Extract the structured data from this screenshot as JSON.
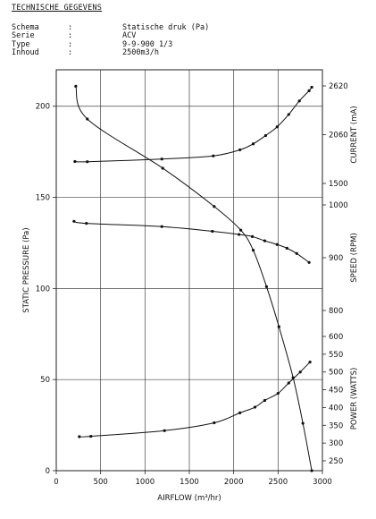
{
  "header": {
    "title": "TECHNISCHE GEGEVENS",
    "specs": [
      {
        "label": "Schema",
        "colon": ":",
        "value": "Statische druk (Pa)"
      },
      {
        "label": "Serie",
        "colon": ":",
        "value": "ACV"
      },
      {
        "label": "Type",
        "colon": ":",
        "value": "9-9-900 1/3"
      },
      {
        "label": "Inhoud",
        "colon": ":",
        "value": "2500m3/h"
      }
    ]
  },
  "chart_data": {
    "type": "line",
    "xlabel": "AIRFLOW (m³/hr)",
    "xlim": [
      0,
      3000
    ],
    "x_ticks": [
      "0",
      "500",
      "1000",
      "1500",
      "2000",
      "2500",
      "3000"
    ],
    "grid": true,
    "axes": {
      "pressure": {
        "label": "STATIC PRESSURE (Pa)",
        "side": "left",
        "ylim": [
          0,
          220
        ],
        "ticks": [
          0,
          50,
          100,
          150,
          200
        ]
      },
      "current": {
        "label": "CURRENT (mA)",
        "side": "right",
        "ylim": [
          1500,
          2620
        ],
        "ticks": [
          1500,
          2060,
          2620
        ]
      },
      "speed": {
        "label": "SPEED (RPM)",
        "side": "right",
        "ylim": [
          800,
          1000
        ],
        "ticks": [
          800,
          900,
          1000
        ]
      },
      "power": {
        "label": "POWER (WATTS)",
        "side": "right",
        "ylim": [
          250,
          600
        ],
        "ticks": [
          250,
          300,
          350,
          400,
          450,
          500,
          550,
          600
        ]
      }
    },
    "series": [
      {
        "axis": "pressure",
        "x": [
          220,
          350,
          1200,
          1780,
          2080,
          2220,
          2370,
          2510,
          2670,
          2780,
          2880
        ],
        "y": [
          211,
          193,
          166,
          145,
          132,
          121,
          101,
          79,
          51,
          26,
          0
        ]
      },
      {
        "axis": "current",
        "x": [
          210,
          350,
          1190,
          1770,
          2070,
          2220,
          2360,
          2490,
          2620,
          2740,
          2850,
          2880
        ],
        "y": [
          1752,
          1749,
          1780,
          1816,
          1886,
          1955,
          2050,
          2150,
          2292,
          2447,
          2565,
          2605
        ]
      },
      {
        "axis": "speed",
        "x": [
          200,
          340,
          1190,
          1760,
          2060,
          2210,
          2350,
          2490,
          2600,
          2710,
          2850
        ],
        "y": [
          969,
          965,
          959,
          950,
          944,
          940,
          932,
          925,
          918,
          908,
          891
        ]
      },
      {
        "axis": "power",
        "x": [
          260,
          390,
          1220,
          1780,
          2070,
          2240,
          2350,
          2500,
          2620,
          2750,
          2860
        ],
        "y": [
          318,
          319,
          335,
          357,
          385,
          401,
          420,
          440,
          469,
          500,
          528
        ]
      }
    ]
  }
}
